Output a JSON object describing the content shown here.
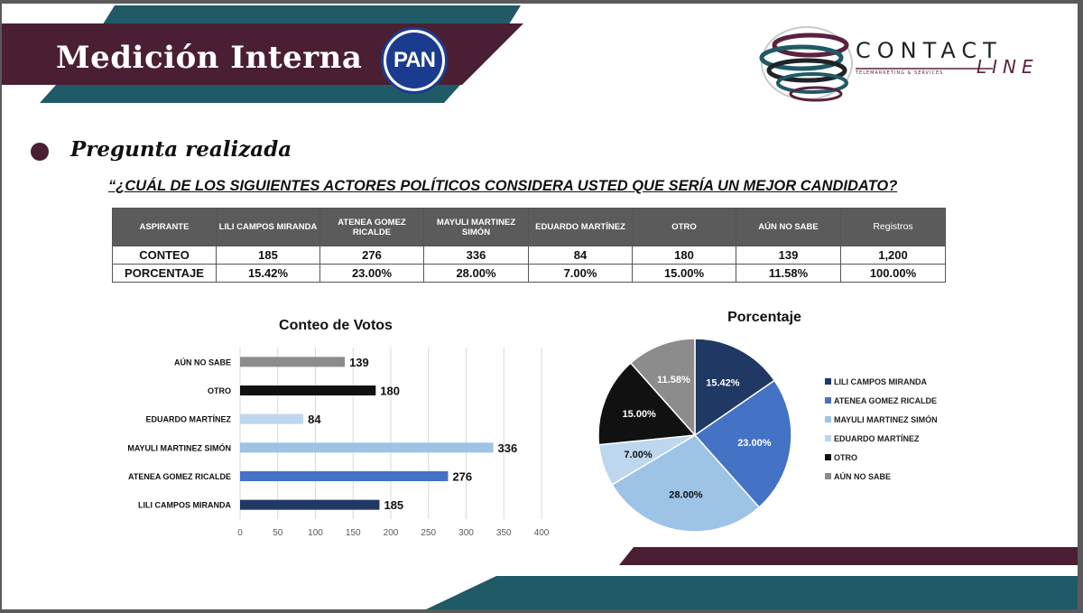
{
  "header": {
    "title": "Medición Interna",
    "pan_logo_text": "PAN",
    "contact_word": "CONTACT",
    "line_word": "LINE",
    "tagline": "TELEMARKETING & SERVICES",
    "colors": {
      "maroon": "#4a1f33",
      "teal": "#1f5a66"
    }
  },
  "section": {
    "heading": "Pregunta realizada",
    "question": "“¿CUÁL DE LOS SIGUIENTES ACTORES POLÍTICOS CONSIDERA USTED QUE SERÍA UN MEJOR CANDIDATO?"
  },
  "table": {
    "header_label": "ASPIRANTE",
    "columns": [
      "LILI CAMPOS MIRANDA",
      "ATENEA GOMEZ RICALDE",
      "MAYULI MARTINEZ SIMÓN",
      "EDUARDO MARTÍNEZ",
      "OTRO",
      "AÚN NO SABE",
      "Registros"
    ],
    "rows": [
      {
        "label": "CONTEO",
        "values": [
          "185",
          "276",
          "336",
          "84",
          "180",
          "139",
          "1,200"
        ]
      },
      {
        "label": "PORCENTAJE",
        "values": [
          "15.42%",
          "23.00%",
          "28.00%",
          "7.00%",
          "15.00%",
          "11.58%",
          "100.00%"
        ]
      }
    ]
  },
  "chart_data": [
    {
      "type": "bar",
      "orientation": "horizontal",
      "title": "Conteo de Votos",
      "categories": [
        "AÚN NO SABE",
        "OTRO",
        "EDUARDO MARTÍNEZ",
        "MAYULI MARTINEZ SIMÓN",
        "ATENEA GOMEZ RICALDE",
        "LILI CAMPOS MIRANDA"
      ],
      "values": [
        139,
        180,
        84,
        336,
        276,
        185
      ],
      "colors": [
        "#8c8c8c",
        "#111111",
        "#bdd7ee",
        "#9dc3e6",
        "#4472c4",
        "#1f3864"
      ],
      "xlim": [
        0,
        400
      ],
      "xticks": [
        0,
        50,
        100,
        150,
        200,
        250,
        300,
        350,
        400
      ],
      "grid": "vertical"
    },
    {
      "type": "pie",
      "title": "Porcentaje",
      "categories": [
        "LILI CAMPOS MIRANDA",
        "ATENEA GOMEZ RICALDE",
        "MAYULI MARTINEZ SIMÓN",
        "EDUARDO MARTÍNEZ",
        "OTRO",
        "AÚN NO SABE"
      ],
      "values": [
        15.42,
        23.0,
        28.0,
        7.0,
        15.0,
        11.58
      ],
      "labels": [
        "15.42%",
        "23.00%",
        "28.00%",
        "7.00%",
        "15.00%",
        "11.58%"
      ],
      "colors": [
        "#1f3864",
        "#4472c4",
        "#9dc3e6",
        "#bdd7ee",
        "#111111",
        "#8c8c8c"
      ],
      "legend": "right"
    }
  ]
}
